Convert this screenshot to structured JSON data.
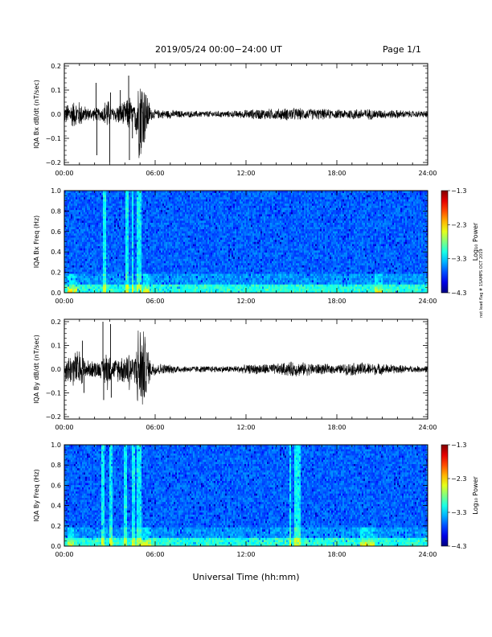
{
  "header": {
    "date_range": "2019/05/24  00:00−24:00 UT",
    "page": "Page 1/1"
  },
  "stamp": "not lead flag # 1SAMPS OCT 2019",
  "xlabel": "Universal Time (hh:mm)",
  "colors": {
    "trace": "#000000",
    "axis": "#000000"
  },
  "chart_data": [
    {
      "type": "line",
      "ylabel": "IQA Bx dB/dt (nT/sec)",
      "x_ticks": [
        "00:00",
        "06:00",
        "12:00",
        "18:00",
        "24:00"
      ],
      "y_ticks": [
        "0.2",
        "0.1",
        "0.0",
        "−0.1",
        "−0.2"
      ],
      "x_range_hours": [
        0,
        24
      ],
      "ylim": [
        -0.21,
        0.21
      ],
      "envelope": {
        "hours": [
          0,
          0.5,
          1.0,
          1.5,
          2.0,
          2.5,
          2.8,
          3.2,
          3.8,
          4.0,
          4.3,
          4.6,
          4.9,
          5.1,
          5.4,
          5.7,
          6.0,
          7,
          8,
          9,
          10,
          11,
          12,
          13,
          14,
          15,
          16,
          17,
          18,
          19,
          20,
          21,
          22,
          23,
          24
        ],
        "amplitude": [
          0.04,
          0.06,
          0.06,
          0.03,
          0.03,
          0.03,
          0.08,
          0.03,
          0.06,
          0.05,
          0.09,
          0.03,
          0.2,
          0.21,
          0.12,
          0.03,
          0.02,
          0.02,
          0.015,
          0.015,
          0.015,
          0.015,
          0.02,
          0.025,
          0.025,
          0.03,
          0.025,
          0.025,
          0.02,
          0.025,
          0.025,
          0.02,
          0.02,
          0.015,
          0.015
        ]
      },
      "spikes": [
        {
          "hour": 2.1,
          "value": 0.13
        },
        {
          "hour": 2.15,
          "value": -0.17
        },
        {
          "hour": 3.0,
          "value": -0.2
        },
        {
          "hour": 3.05,
          "value": 0.09
        },
        {
          "hour": 3.7,
          "value": 0.1
        },
        {
          "hour": 4.25,
          "value": 0.16
        },
        {
          "hour": 4.3,
          "value": -0.19
        },
        {
          "hour": 4.5,
          "value": -0.1
        }
      ]
    },
    {
      "type": "heatmap",
      "ylabel": "IQA Bx Freq (Hz)",
      "x_ticks": [
        "00:00",
        "06:00",
        "12:00",
        "18:00",
        "24:00"
      ],
      "y_ticks": [
        "1.0",
        "0.8",
        "0.6",
        "0.4",
        "0.2",
        "0.0"
      ],
      "x_range_hours": [
        0,
        24
      ],
      "ylim": [
        0,
        1.0
      ],
      "colorbar": {
        "label": "Log₁₀ Power",
        "ticks": [
          "−1.3",
          "−2.3",
          "−3.3",
          "−4.3"
        ],
        "range": [
          -4.3,
          -1.3
        ]
      },
      "activity_hours": [
        2.6,
        2.65,
        4.1,
        4.15,
        4.5,
        4.85,
        4.9,
        5.0
      ],
      "low_freq_enhancement_hours": [
        0.2,
        0.8,
        5.2,
        5.6,
        20.5,
        21
      ]
    },
    {
      "type": "line",
      "ylabel": "IQA By dB/dt (nT/sec)",
      "x_ticks": [
        "00:00",
        "06:00",
        "12:00",
        "18:00",
        "24:00"
      ],
      "y_ticks": [
        "0.2",
        "0.1",
        "0.0",
        "−0.1",
        "−0.2"
      ],
      "x_range_hours": [
        0,
        24
      ],
      "ylim": [
        -0.21,
        0.21
      ],
      "envelope": {
        "hours": [
          0,
          0.5,
          1.0,
          1.5,
          2.0,
          2.5,
          2.8,
          3.2,
          3.8,
          4.0,
          4.3,
          4.6,
          4.9,
          5.1,
          5.4,
          5.7,
          6.0,
          7,
          8,
          9,
          10,
          11,
          12,
          13,
          14,
          15,
          16,
          17,
          18,
          19,
          20,
          21,
          22,
          23,
          24
        ],
        "amplitude": [
          0.05,
          0.08,
          0.09,
          0.04,
          0.04,
          0.04,
          0.1,
          0.04,
          0.07,
          0.06,
          0.11,
          0.04,
          0.21,
          0.21,
          0.14,
          0.04,
          0.03,
          0.02,
          0.015,
          0.015,
          0.015,
          0.015,
          0.02,
          0.025,
          0.025,
          0.035,
          0.03,
          0.025,
          0.02,
          0.03,
          0.03,
          0.025,
          0.02,
          0.015,
          0.015
        ]
      },
      "spikes": [
        {
          "hour": 2.55,
          "value": 0.2
        },
        {
          "hour": 2.6,
          "value": -0.13
        },
        {
          "hour": 3.05,
          "value": 0.19
        },
        {
          "hour": 3.1,
          "value": -0.12
        },
        {
          "hour": 1.2,
          "value": 0.12
        },
        {
          "hour": 1.3,
          "value": -0.1
        }
      ]
    },
    {
      "type": "heatmap",
      "ylabel": "IQA By Freq (Hz)",
      "x_ticks": [
        "00:00",
        "06:00",
        "12:00",
        "18:00",
        "24:00"
      ],
      "y_ticks": [
        "1.0",
        "0.8",
        "0.6",
        "0.4",
        "0.2",
        "0.0"
      ],
      "x_range_hours": [
        0,
        24
      ],
      "ylim": [
        0,
        1.0
      ],
      "colorbar": {
        "label": "Log₁₀ Power",
        "ticks": [
          "−1.3",
          "−2.3",
          "−3.3",
          "−4.3"
        ],
        "range": [
          -4.3,
          -1.3
        ]
      },
      "activity_hours": [
        2.55,
        3.1,
        4.0,
        4.1,
        4.55,
        4.85,
        4.9,
        5.0,
        14.9,
        15.3,
        15.4,
        15.5
      ],
      "low_freq_enhancement_hours": [
        0.2,
        0.6,
        5.1,
        5.7,
        19.5,
        20.5
      ]
    }
  ]
}
